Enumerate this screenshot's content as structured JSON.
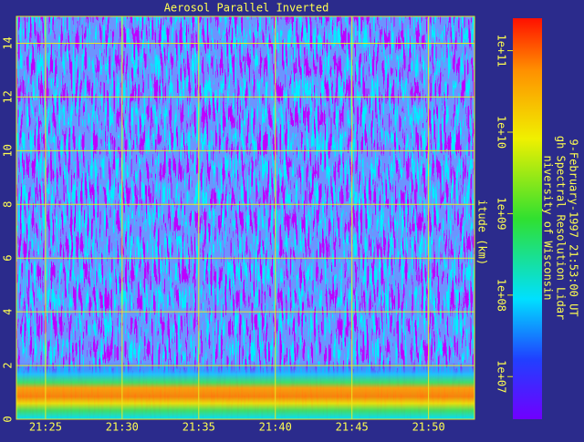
{
  "chart_data": {
    "type": "heatmap",
    "title": "Aerosol Parallel Inverted",
    "ylabel": "itude (km)",
    "xlim": [
      23.1,
      53
    ],
    "xticks": [
      {
        "value": 25,
        "label": "21:25"
      },
      {
        "value": 30,
        "label": "21:30"
      },
      {
        "value": 35,
        "label": "21:35"
      },
      {
        "value": 40,
        "label": "21:40"
      },
      {
        "value": 45,
        "label": "21:45"
      },
      {
        "value": 50,
        "label": "21:50"
      }
    ],
    "ylim": [
      0,
      15
    ],
    "yticks": [
      0,
      2,
      4,
      6,
      8,
      10,
      12,
      14
    ],
    "grid": true,
    "grid_color": "#e8e820",
    "colorbar": {
      "scale": "log",
      "lim": [
        3000000,
        250000000000
      ],
      "ticks": [
        {
          "value": 10000000,
          "label": "1e+07"
        },
        {
          "value": 100000000,
          "label": "1e+08"
        },
        {
          "value": 1000000000,
          "label": "1e+09"
        },
        {
          "value": 10000000000,
          "label": "1e+10"
        },
        {
          "value": 100000000000,
          "label": "1e+11"
        }
      ]
    },
    "annotations": [
      "niversity of Wisconsin",
      "gh Spectral Resolution Lidar",
      "9-February-1997 21:53:00 UT"
    ]
  }
}
